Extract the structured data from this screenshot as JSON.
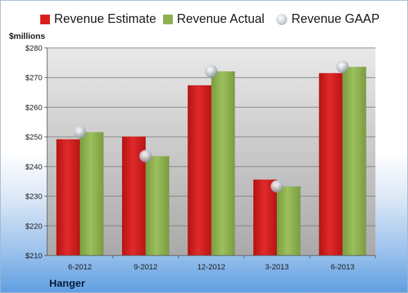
{
  "chart_data": {
    "type": "bar",
    "title": "",
    "ylabel": "$millions",
    "xlabel": "",
    "footer_label": "Hanger",
    "categories": [
      "6-2012",
      "9-2012",
      "12-2012",
      "3-2013",
      "6-2013"
    ],
    "series": [
      {
        "name": "Revenue Estimate",
        "kind": "bar",
        "color": "#d91e1e",
        "values": [
          249.2,
          250.1,
          267.4,
          235.6,
          271.5
        ]
      },
      {
        "name": "Revenue Actual",
        "kind": "bar",
        "color": "#8db050",
        "values": [
          251.6,
          243.5,
          272.1,
          233.3,
          273.6
        ]
      },
      {
        "name": "Revenue GAAP",
        "kind": "marker",
        "color": "#b8bcc4",
        "values": [
          251.6,
          243.5,
          272.1,
          233.3,
          273.6
        ]
      }
    ],
    "ylim": [
      210,
      280
    ],
    "yticks": [
      210,
      220,
      230,
      240,
      250,
      260,
      270,
      280
    ],
    "ytick_labels": [
      "$210",
      "$220",
      "$230",
      "$240",
      "$250",
      "$260",
      "$270",
      "$280"
    ],
    "grid": true,
    "legend_position": "top"
  }
}
